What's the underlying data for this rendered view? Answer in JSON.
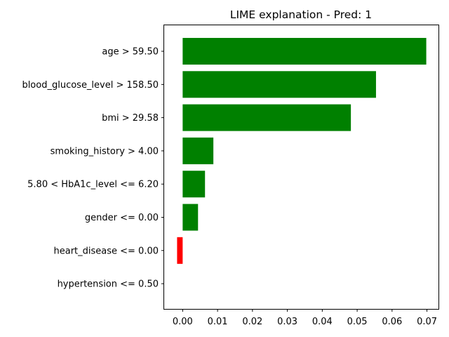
{
  "chart_data": {
    "type": "bar",
    "orientation": "horizontal",
    "title": "LIME explanation - Pred: 1",
    "xlabel": "",
    "ylabel": "",
    "categories": [
      "age > 59.50",
      "blood_glucose_level > 158.50",
      "bmi > 29.58",
      "smoking_history > 4.00",
      "5.80 < HbA1c_level <= 6.20",
      "gender <= 0.00",
      "heart_disease <= 0.00",
      "hypertension <= 0.50"
    ],
    "values": [
      0.0698,
      0.0554,
      0.0482,
      0.0088,
      0.0064,
      0.0044,
      -0.0016,
      0.0
    ],
    "xlim": [
      -0.0053,
      0.0733
    ],
    "xticks": [
      "0.00",
      "0.01",
      "0.02",
      "0.03",
      "0.04",
      "0.05",
      "0.06",
      "0.07"
    ],
    "xtick_values": [
      0,
      0.01,
      0.02,
      0.03,
      0.04,
      0.05,
      0.06,
      0.07
    ],
    "positive_color": "#008000",
    "negative_color": "#ff0000",
    "grid": false,
    "legend": "none"
  }
}
